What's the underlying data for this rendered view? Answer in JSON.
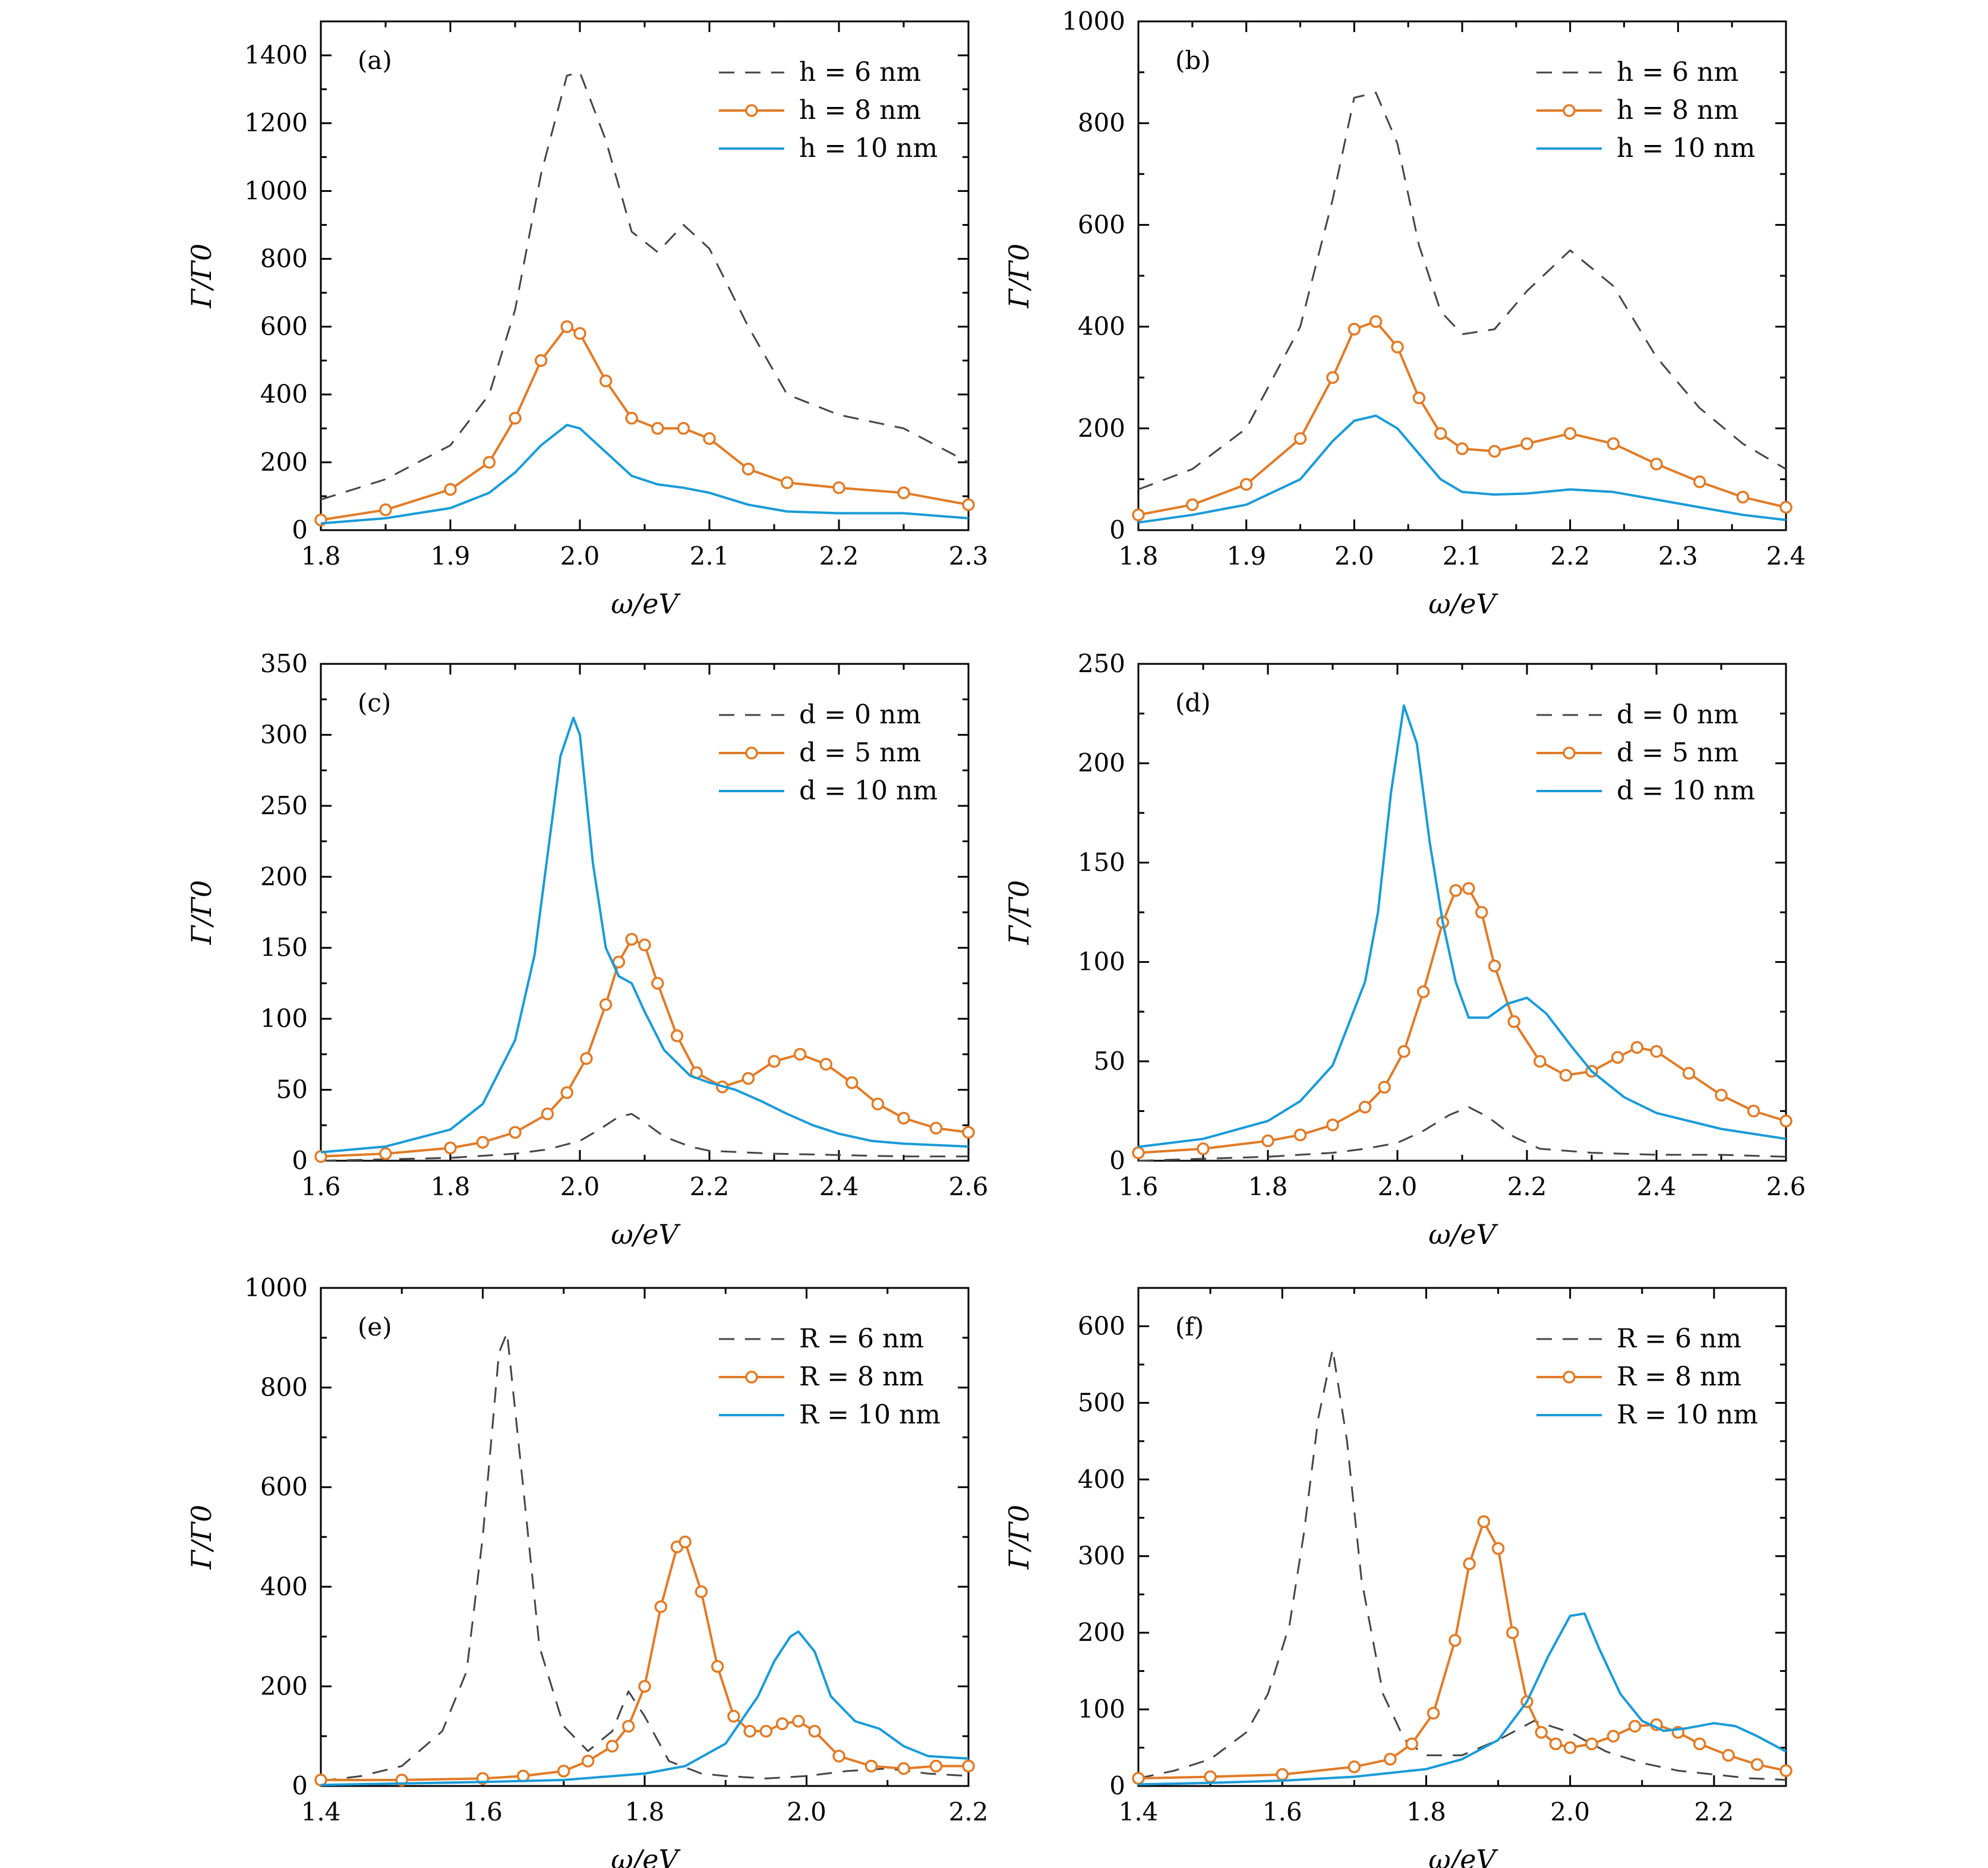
{
  "colors": {
    "dashed": "#444444",
    "circles": "#E07B27",
    "solid": "#1A9BD7"
  },
  "chart_data": [
    {
      "type": "line",
      "panel": "(a)",
      "xlabel": "ω/eV",
      "ylabel": "Γ/Γ0",
      "xlim": [
        1.8,
        2.3
      ],
      "ylim": [
        0,
        1500
      ],
      "xticks": [
        1.8,
        1.9,
        2.0,
        2.1,
        2.2,
        2.3
      ],
      "xtick_labels": [
        "1.8",
        "1.9",
        "2.0",
        "2.1",
        "2.2",
        "2.3"
      ],
      "yticks": [
        0,
        200,
        400,
        600,
        800,
        1000,
        1200,
        1400
      ],
      "ytick_labels": [
        "0",
        "200",
        "400",
        "600",
        "800",
        "1000",
        "1200",
        "1400"
      ],
      "legend_position": "top-right",
      "series": [
        {
          "name": "h = 6 nm",
          "style": "dashed",
          "x": [
            1.8,
            1.85,
            1.9,
            1.93,
            1.95,
            1.97,
            1.99,
            2.0,
            2.02,
            2.04,
            2.06,
            2.08,
            2.1,
            2.13,
            2.16,
            2.2,
            2.25,
            2.3
          ],
          "y": [
            90,
            150,
            250,
            400,
            650,
            1050,
            1340,
            1350,
            1150,
            880,
            820,
            900,
            830,
            600,
            400,
            340,
            300,
            200
          ]
        },
        {
          "name": "h = 8 nm",
          "style": "circles",
          "x": [
            1.8,
            1.85,
            1.9,
            1.93,
            1.95,
            1.97,
            1.99,
            2.0,
            2.02,
            2.04,
            2.06,
            2.08,
            2.1,
            2.13,
            2.16,
            2.2,
            2.25,
            2.3
          ],
          "y": [
            30,
            60,
            120,
            200,
            330,
            500,
            600,
            580,
            440,
            330,
            300,
            300,
            270,
            180,
            140,
            125,
            110,
            75
          ]
        },
        {
          "name": "h = 10 nm",
          "style": "solid",
          "x": [
            1.8,
            1.85,
            1.9,
            1.93,
            1.95,
            1.97,
            1.99,
            2.0,
            2.02,
            2.04,
            2.06,
            2.08,
            2.1,
            2.13,
            2.16,
            2.2,
            2.25,
            2.3
          ],
          "y": [
            20,
            35,
            65,
            110,
            170,
            250,
            310,
            300,
            230,
            160,
            135,
            125,
            110,
            75,
            55,
            50,
            50,
            35
          ]
        }
      ]
    },
    {
      "type": "line",
      "panel": "(b)",
      "xlabel": "ω/eV",
      "ylabel": "Γ/Γ0",
      "xlim": [
        1.8,
        2.4
      ],
      "ylim": [
        0,
        1000
      ],
      "xticks": [
        1.8,
        1.9,
        2.0,
        2.1,
        2.2,
        2.3,
        2.4
      ],
      "xtick_labels": [
        "1.8",
        "1.9",
        "2.0",
        "2.1",
        "2.2",
        "2.3",
        "2.4"
      ],
      "yticks": [
        0,
        200,
        400,
        600,
        800,
        1000
      ],
      "ytick_labels": [
        "0",
        "200",
        "400",
        "600",
        "800",
        "1000"
      ],
      "legend_position": "top-right",
      "series": [
        {
          "name": "h = 6 nm",
          "style": "dashed",
          "x": [
            1.8,
            1.85,
            1.9,
            1.95,
            1.98,
            2.0,
            2.02,
            2.04,
            2.06,
            2.08,
            2.1,
            2.13,
            2.16,
            2.2,
            2.24,
            2.28,
            2.32,
            2.36,
            2.4
          ],
          "y": [
            80,
            120,
            200,
            400,
            650,
            850,
            860,
            760,
            560,
            430,
            385,
            395,
            470,
            550,
            480,
            340,
            240,
            170,
            120
          ]
        },
        {
          "name": "h = 8 nm",
          "style": "circles",
          "x": [
            1.8,
            1.85,
            1.9,
            1.95,
            1.98,
            2.0,
            2.02,
            2.04,
            2.06,
            2.08,
            2.1,
            2.13,
            2.16,
            2.2,
            2.24,
            2.28,
            2.32,
            2.36,
            2.4
          ],
          "y": [
            30,
            50,
            90,
            180,
            300,
            395,
            410,
            360,
            260,
            190,
            160,
            155,
            170,
            190,
            170,
            130,
            95,
            65,
            45
          ]
        },
        {
          "name": "h = 10 nm",
          "style": "solid",
          "x": [
            1.8,
            1.85,
            1.9,
            1.95,
            1.98,
            2.0,
            2.02,
            2.04,
            2.06,
            2.08,
            2.1,
            2.13,
            2.16,
            2.2,
            2.24,
            2.28,
            2.32,
            2.36,
            2.4
          ],
          "y": [
            15,
            30,
            50,
            100,
            175,
            215,
            225,
            200,
            150,
            100,
            75,
            70,
            72,
            80,
            75,
            60,
            45,
            30,
            20
          ]
        }
      ]
    },
    {
      "type": "line",
      "panel": "(c)",
      "xlabel": "ω/eV",
      "ylabel": "Γ/Γ0",
      "xlim": [
        1.6,
        2.6
      ],
      "ylim": [
        0,
        350
      ],
      "xticks": [
        1.6,
        1.8,
        2.0,
        2.2,
        2.4,
        2.6
      ],
      "xtick_labels": [
        "1.6",
        "1.8",
        "2.0",
        "2.2",
        "2.4",
        "2.6"
      ],
      "yticks": [
        0,
        50,
        100,
        150,
        200,
        250,
        300,
        350
      ],
      "ytick_labels": [
        "0",
        "50",
        "100",
        "150",
        "200",
        "250",
        "300",
        "350"
      ],
      "legend_position": "top-right",
      "series": [
        {
          "name": "d = 0 nm",
          "style": "dashed",
          "x": [
            1.6,
            1.8,
            1.9,
            1.95,
            2.0,
            2.03,
            2.06,
            2.08,
            2.1,
            2.13,
            2.17,
            2.2,
            2.3,
            2.4,
            2.5,
            2.6
          ],
          "y": [
            0,
            2,
            5,
            8,
            14,
            22,
            31,
            33,
            27,
            17,
            10,
            7,
            5,
            4,
            3,
            3
          ]
        },
        {
          "name": "d = 5 nm",
          "style": "circles",
          "x": [
            1.6,
            1.7,
            1.8,
            1.85,
            1.9,
            1.95,
            1.98,
            2.01,
            2.04,
            2.06,
            2.08,
            2.1,
            2.12,
            2.15,
            2.18,
            2.22,
            2.26,
            2.3,
            2.34,
            2.38,
            2.42,
            2.46,
            2.5,
            2.55,
            2.6
          ],
          "y": [
            3,
            5,
            9,
            13,
            20,
            33,
            48,
            72,
            110,
            140,
            156,
            152,
            125,
            88,
            62,
            52,
            58,
            70,
            75,
            68,
            55,
            40,
            30,
            23,
            20
          ]
        },
        {
          "name": "d = 10 nm",
          "style": "solid",
          "x": [
            1.6,
            1.7,
            1.8,
            1.85,
            1.9,
            1.93,
            1.95,
            1.97,
            1.99,
            2.0,
            2.02,
            2.04,
            2.06,
            2.08,
            2.1,
            2.13,
            2.17,
            2.2,
            2.24,
            2.28,
            2.32,
            2.36,
            2.4,
            2.45,
            2.5,
            2.6
          ],
          "y": [
            6,
            10,
            22,
            40,
            85,
            145,
            215,
            285,
            312,
            300,
            210,
            150,
            130,
            125,
            105,
            78,
            60,
            55,
            50,
            42,
            33,
            25,
            19,
            14,
            12,
            10
          ]
        }
      ]
    },
    {
      "type": "line",
      "panel": "(d)",
      "xlabel": "ω/eV",
      "ylabel": "Γ/Γ0",
      "xlim": [
        1.6,
        2.6
      ],
      "ylim": [
        0,
        250
      ],
      "xticks": [
        1.6,
        1.8,
        2.0,
        2.2,
        2.4,
        2.6
      ],
      "xtick_labels": [
        "1.6",
        "1.8",
        "2.0",
        "2.2",
        "2.4",
        "2.6"
      ],
      "yticks": [
        0,
        50,
        100,
        150,
        200,
        250
      ],
      "ytick_labels": [
        "0",
        "50",
        "100",
        "150",
        "200",
        "250"
      ],
      "legend_position": "top-right",
      "series": [
        {
          "name": "d = 0 nm",
          "style": "dashed",
          "x": [
            1.6,
            1.8,
            1.9,
            1.95,
            2.0,
            2.04,
            2.08,
            2.11,
            2.14,
            2.18,
            2.22,
            2.3,
            2.4,
            2.5,
            2.6
          ],
          "y": [
            0,
            2,
            4,
            6,
            9,
            15,
            23,
            27,
            22,
            12,
            6,
            4,
            3,
            3,
            2
          ]
        },
        {
          "name": "d = 5 nm",
          "style": "circles",
          "x": [
            1.6,
            1.7,
            1.8,
            1.85,
            1.9,
            1.95,
            1.98,
            2.01,
            2.04,
            2.07,
            2.09,
            2.11,
            2.13,
            2.15,
            2.18,
            2.22,
            2.26,
            2.3,
            2.34,
            2.37,
            2.4,
            2.45,
            2.5,
            2.55,
            2.6
          ],
          "y": [
            4,
            6,
            10,
            13,
            18,
            27,
            37,
            55,
            85,
            120,
            136,
            137,
            125,
            98,
            70,
            50,
            43,
            45,
            52,
            57,
            55,
            44,
            33,
            25,
            20
          ]
        },
        {
          "name": "d = 10 nm",
          "style": "solid",
          "x": [
            1.6,
            1.7,
            1.8,
            1.85,
            1.9,
            1.95,
            1.97,
            1.99,
            2.01,
            2.03,
            2.05,
            2.07,
            2.09,
            2.11,
            2.14,
            2.17,
            2.2,
            2.23,
            2.27,
            2.3,
            2.35,
            2.4,
            2.5,
            2.6
          ],
          "y": [
            7,
            11,
            20,
            30,
            48,
            90,
            125,
            185,
            229,
            210,
            160,
            120,
            90,
            72,
            72,
            79,
            82,
            74,
            57,
            45,
            32,
            24,
            16,
            11
          ]
        }
      ]
    },
    {
      "type": "line",
      "panel": "(e)",
      "xlabel": "ω/eV",
      "ylabel": "Γ/Γ0",
      "xlim": [
        1.4,
        2.2
      ],
      "ylim": [
        0,
        1000
      ],
      "xticks": [
        1.4,
        1.6,
        1.8,
        2.0,
        2.2
      ],
      "xtick_labels": [
        "1.4",
        "1.6",
        "1.8",
        "2.0",
        "2.2"
      ],
      "yticks": [
        0,
        200,
        400,
        600,
        800,
        1000
      ],
      "ytick_labels": [
        "0",
        "200",
        "400",
        "600",
        "800",
        "1000"
      ],
      "legend_position": "top-right",
      "series": [
        {
          "name": "R = 6 nm",
          "style": "dashed",
          "x": [
            1.4,
            1.45,
            1.5,
            1.55,
            1.58,
            1.6,
            1.62,
            1.63,
            1.65,
            1.67,
            1.7,
            1.73,
            1.76,
            1.78,
            1.8,
            1.83,
            1.87,
            1.9,
            1.95,
            2.0,
            2.05,
            2.1,
            2.15,
            2.2
          ],
          "y": [
            10,
            20,
            40,
            110,
            230,
            500,
            870,
            910,
            600,
            280,
            120,
            70,
            110,
            190,
            140,
            50,
            25,
            20,
            15,
            20,
            30,
            35,
            25,
            20
          ]
        },
        {
          "name": "R = 8 nm",
          "style": "circles",
          "x": [
            1.4,
            1.5,
            1.6,
            1.65,
            1.7,
            1.73,
            1.76,
            1.78,
            1.8,
            1.82,
            1.84,
            1.85,
            1.87,
            1.89,
            1.91,
            1.93,
            1.95,
            1.97,
            1.99,
            2.01,
            2.04,
            2.08,
            2.12,
            2.16,
            2.2
          ],
          "y": [
            12,
            12,
            15,
            20,
            30,
            50,
            80,
            120,
            200,
            360,
            480,
            490,
            390,
            240,
            140,
            110,
            110,
            125,
            130,
            110,
            60,
            40,
            35,
            40,
            40
          ]
        },
        {
          "name": "R = 10 nm",
          "style": "solid",
          "x": [
            1.4,
            1.5,
            1.6,
            1.7,
            1.8,
            1.85,
            1.9,
            1.94,
            1.96,
            1.98,
            1.99,
            2.01,
            2.03,
            2.06,
            2.09,
            2.12,
            2.15,
            2.2
          ],
          "y": [
            2,
            5,
            8,
            12,
            25,
            40,
            85,
            180,
            250,
            300,
            310,
            270,
            180,
            130,
            115,
            80,
            60,
            55
          ]
        }
      ]
    },
    {
      "type": "line",
      "panel": "(f)",
      "xlabel": "ω/eV",
      "ylabel": "Γ/Γ0",
      "xlim": [
        1.4,
        2.3
      ],
      "ylim": [
        0,
        650
      ],
      "xticks": [
        1.4,
        1.6,
        1.8,
        2.0,
        2.2
      ],
      "xtick_labels": [
        "1.4",
        "1.6",
        "1.8",
        "2.0",
        "2.2"
      ],
      "yticks": [
        0,
        100,
        200,
        300,
        400,
        500,
        600
      ],
      "ytick_labels": [
        "0",
        "100",
        "200",
        "300",
        "400",
        "500",
        "600"
      ],
      "legend_position": "top-right",
      "series": [
        {
          "name": "R = 6 nm",
          "style": "dashed",
          "x": [
            1.4,
            1.45,
            1.5,
            1.55,
            1.58,
            1.61,
            1.63,
            1.65,
            1.67,
            1.69,
            1.71,
            1.74,
            1.77,
            1.8,
            1.85,
            1.9,
            1.95,
            2.0,
            2.05,
            2.1,
            2.15,
            2.2,
            2.25,
            2.3
          ],
          "y": [
            10,
            20,
            35,
            70,
            120,
            210,
            330,
            480,
            570,
            450,
            270,
            120,
            60,
            40,
            40,
            60,
            85,
            70,
            45,
            30,
            20,
            15,
            10,
            8
          ]
        },
        {
          "name": "R = 8 nm",
          "style": "circles",
          "x": [
            1.4,
            1.5,
            1.6,
            1.7,
            1.75,
            1.78,
            1.81,
            1.84,
            1.86,
            1.88,
            1.9,
            1.92,
            1.94,
            1.96,
            1.98,
            2.0,
            2.03,
            2.06,
            2.09,
            2.12,
            2.15,
            2.18,
            2.22,
            2.26,
            2.3
          ],
          "y": [
            10,
            12,
            15,
            25,
            35,
            55,
            95,
            190,
            290,
            345,
            310,
            200,
            110,
            70,
            55,
            50,
            55,
            65,
            78,
            80,
            70,
            55,
            40,
            28,
            20
          ]
        },
        {
          "name": "R = 10 nm",
          "style": "solid",
          "x": [
            1.4,
            1.5,
            1.6,
            1.7,
            1.8,
            1.85,
            1.9,
            1.94,
            1.97,
            2.0,
            2.02,
            2.04,
            2.07,
            2.1,
            2.13,
            2.16,
            2.2,
            2.23,
            2.26,
            2.3
          ],
          "y": [
            2,
            4,
            7,
            12,
            22,
            35,
            60,
            110,
            170,
            222,
            225,
            180,
            120,
            85,
            72,
            75,
            82,
            78,
            65,
            45
          ]
        }
      ]
    }
  ]
}
